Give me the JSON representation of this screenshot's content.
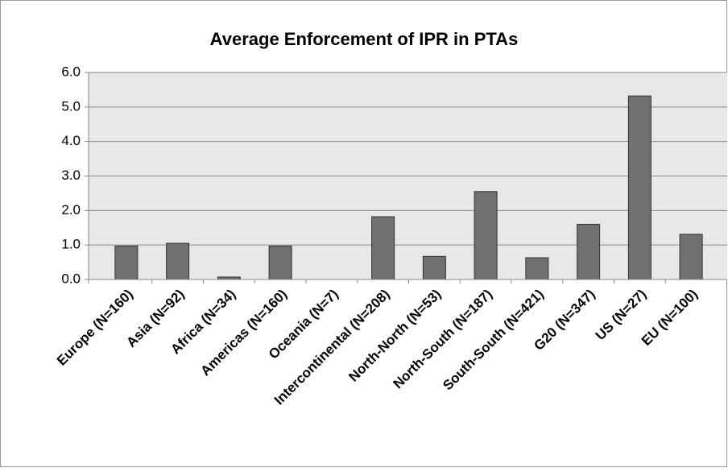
{
  "chart_data": {
    "type": "bar",
    "title": "Average Enforcement of IPR in PTAs",
    "categories": [
      "Europe (N=160)",
      "Asia (N=92)",
      "Africa (N=34)",
      "Americas (N=160)",
      "Oceania (N=7)",
      "Intercontinental (N=208)",
      "North-North (N=53)",
      "North-South (N=187)",
      "South-South (N=421)",
      "G20 (N=347)",
      "US (N=27)",
      "EU (N=100)"
    ],
    "values": [
      0.97,
      1.05,
      0.07,
      0.97,
      0,
      1.82,
      0.67,
      2.55,
      0.63,
      1.6,
      5.32,
      1.31
    ],
    "color": "#707070",
    "ylim": [
      0,
      6
    ],
    "yticks": [
      {
        "value": 0,
        "label": "0.0"
      },
      {
        "value": 1,
        "label": "1.0"
      },
      {
        "value": 2,
        "label": "2.0"
      },
      {
        "value": 3,
        "label": "3.0"
      },
      {
        "value": 4,
        "label": "4.0"
      },
      {
        "value": 5,
        "label": "5.0"
      },
      {
        "value": 6,
        "label": "6.0"
      }
    ],
    "grid": true
  }
}
